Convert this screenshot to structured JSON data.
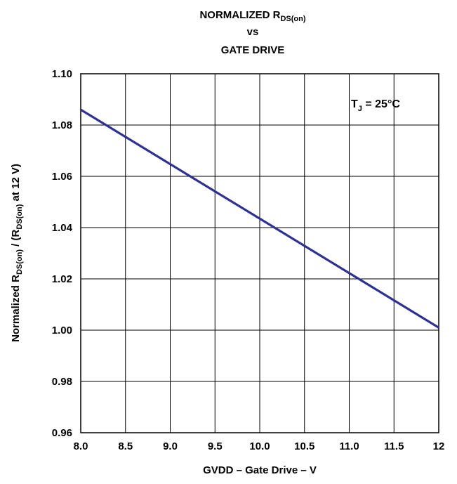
{
  "chart_data": {
    "type": "line",
    "title": {
      "line1": {
        "main": "NORMALIZED R",
        "sub": "DS(on)"
      },
      "line2": "vs",
      "line3": "GATE DRIVE"
    },
    "xlabel": "GVDD – Gate Drive – V",
    "ylabel": {
      "p1": "Normalized R",
      "s1": "DS(on)",
      "p2": " / (R",
      "s2": "DS(on)",
      "p3": " at 12 V)"
    },
    "annotation": {
      "main": "T",
      "sub": "J",
      "rest": " = 25°C"
    },
    "xlim": [
      8.0,
      12.0
    ],
    "ylim": [
      0.96,
      1.1
    ],
    "x_ticks": [
      "8.0",
      "8.5",
      "9.0",
      "9.5",
      "10.0",
      "10.5",
      "11.0",
      "11.5",
      "12"
    ],
    "y_ticks": [
      "0.96",
      "0.98",
      "1.00",
      "1.02",
      "1.04",
      "1.06",
      "1.08",
      "1.10"
    ],
    "grid": true,
    "series": [
      {
        "x": [
          8.0,
          12.0
        ],
        "y": [
          1.086,
          1.001
        ],
        "color": "#2e3192"
      }
    ]
  }
}
